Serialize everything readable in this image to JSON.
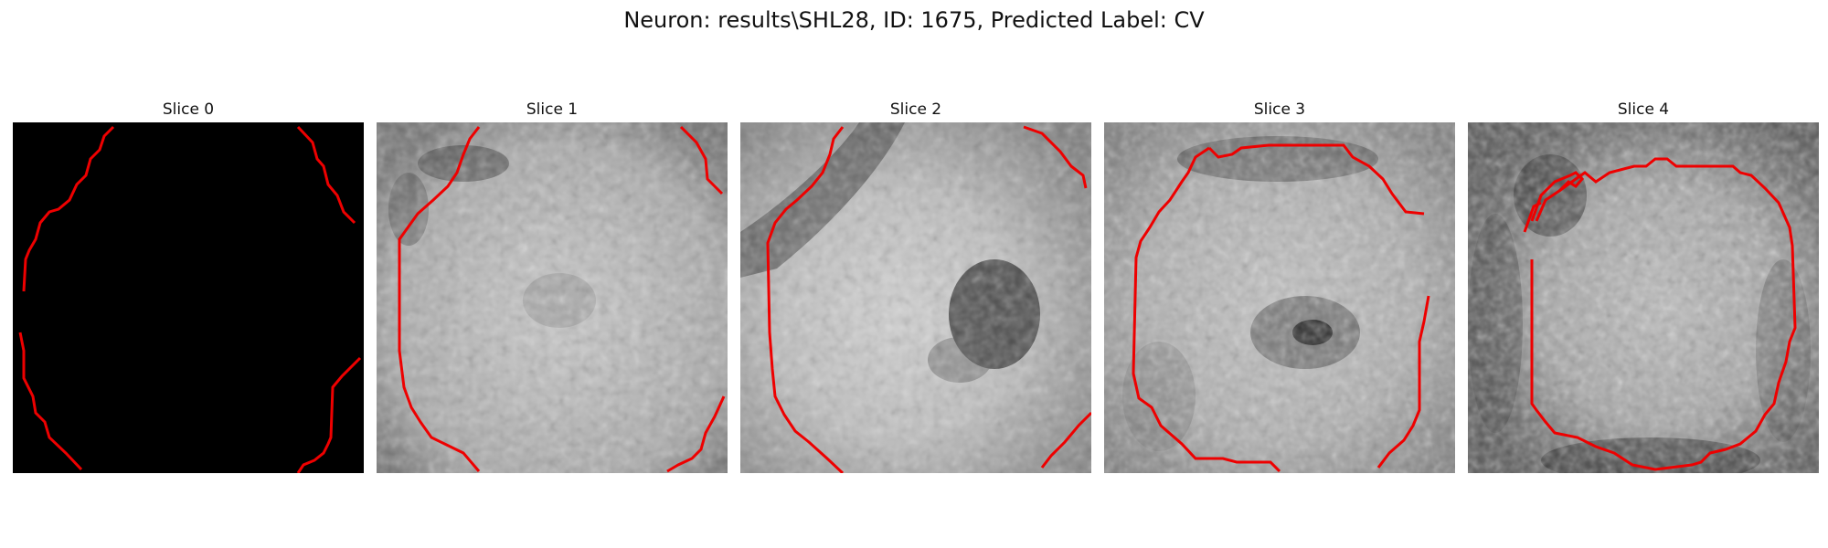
{
  "figure": {
    "title": "Neuron: results\\SHL28, ID: 1675, Predicted Label: CV"
  },
  "panels": [
    {
      "title": "Slice 0",
      "kind": "mask"
    },
    {
      "title": "Slice 1",
      "kind": "image"
    },
    {
      "title": "Slice 2",
      "kind": "image"
    },
    {
      "title": "Slice 3",
      "kind": "image"
    },
    {
      "title": "Slice 4",
      "kind": "image"
    }
  ],
  "colors": {
    "contour": "#ff0000",
    "mask_background": "#000000"
  }
}
